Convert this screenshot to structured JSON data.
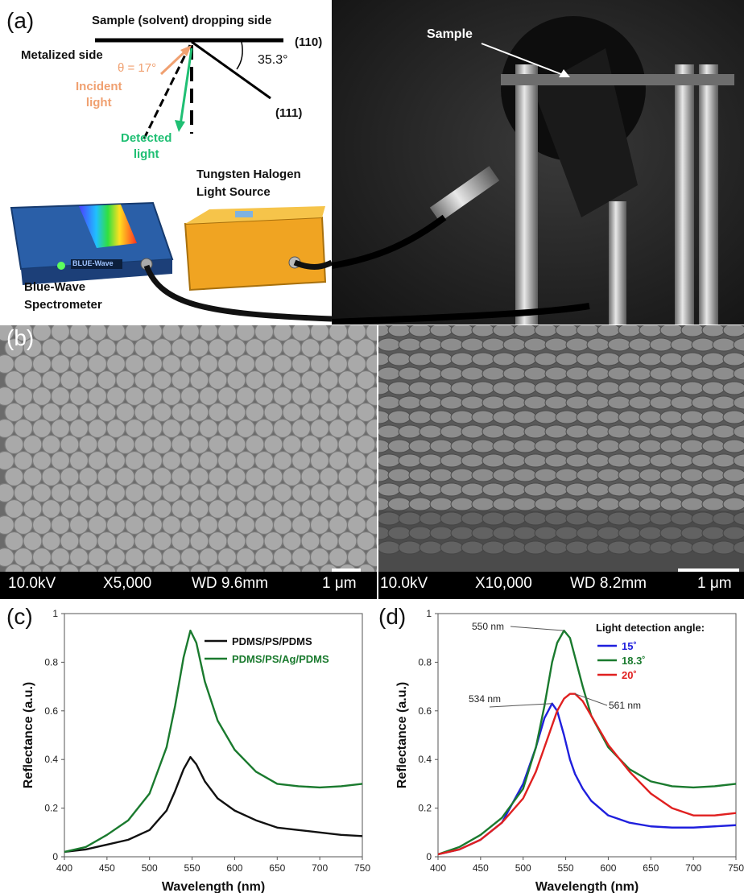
{
  "panel_a": {
    "label": "(a)",
    "top_label": "Sample (solvent) dropping side",
    "metalized_side": "Metalized side",
    "plane_110": "(110)",
    "plane_111": "(111)",
    "angle_35": "35.3°",
    "theta": "θ = 17°",
    "incident_line1": "Incident",
    "incident_line2": "light",
    "detected_line1": "Detected",
    "detected_line2": "light",
    "tungsten_line1": "Tungsten Halogen",
    "tungsten_line2": "Light Source",
    "bluewave_line1": "Blue-Wave",
    "bluewave_line2": "Spectrometer",
    "spectrometer_badge": "BLUE-Wave",
    "sample_label": "Sample",
    "colors": {
      "incident": "#f0a070",
      "detected": "#1fbf73"
    }
  },
  "panel_b": {
    "label": "(b)",
    "left": {
      "kv": "10.0kV",
      "mag": "X5,000",
      "wd": "WD 9.6mm",
      "scale": "1 μm"
    },
    "right": {
      "kv": "10.0kV",
      "mag": "X10,000",
      "wd": "WD 8.2mm",
      "scale": "1 μm"
    }
  },
  "panel_c": {
    "label": "(c)"
  },
  "panel_d": {
    "label": "(d)"
  },
  "chart_data": [
    {
      "type": "line",
      "xlabel": "Wavelength (nm)",
      "ylabel": "Reflectance (a.u.)",
      "xlim": [
        400,
        750
      ],
      "ylim": [
        0,
        1
      ],
      "xticks": [
        400,
        450,
        500,
        550,
        600,
        650,
        700,
        750
      ],
      "yticks": [
        0,
        0.2,
        0.4,
        0.6,
        0.8,
        1
      ],
      "legend": "top-right",
      "x": [
        400,
        425,
        450,
        475,
        500,
        520,
        530,
        540,
        548,
        555,
        565,
        580,
        600,
        625,
        650,
        675,
        700,
        725,
        750
      ],
      "series": [
        {
          "name": "PDMS/PS/PDMS",
          "color": "#111111",
          "values": [
            0.02,
            0.03,
            0.05,
            0.07,
            0.11,
            0.19,
            0.27,
            0.36,
            0.41,
            0.38,
            0.31,
            0.24,
            0.19,
            0.15,
            0.12,
            0.11,
            0.1,
            0.09,
            0.085
          ]
        },
        {
          "name": "PDMS/PS/Ag/PDMS",
          "color": "#1a7a2e",
          "values": [
            0.02,
            0.04,
            0.09,
            0.15,
            0.26,
            0.45,
            0.62,
            0.82,
            0.93,
            0.88,
            0.72,
            0.56,
            0.44,
            0.35,
            0.3,
            0.29,
            0.285,
            0.29,
            0.3
          ]
        }
      ]
    },
    {
      "type": "line",
      "xlabel": "Wavelength (nm)",
      "ylabel": "Reflectance (a.u.)",
      "xlim": [
        400,
        750
      ],
      "ylim": [
        0,
        1
      ],
      "xticks": [
        400,
        450,
        500,
        550,
        600,
        650,
        700,
        750
      ],
      "yticks": [
        0,
        0.2,
        0.4,
        0.6,
        0.8,
        1
      ],
      "legend_title": "Light detection angle:",
      "legend": "top-right",
      "annotations": [
        "550 nm",
        "534 nm",
        "561 nm"
      ],
      "x": [
        400,
        425,
        450,
        475,
        500,
        515,
        525,
        534,
        540,
        548,
        555,
        561,
        570,
        580,
        600,
        625,
        650,
        675,
        700,
        725,
        750
      ],
      "series": [
        {
          "name": "15˚",
          "color": "#1f1fdd",
          "values": [
            0.01,
            0.03,
            0.07,
            0.14,
            0.3,
            0.45,
            0.57,
            0.63,
            0.6,
            0.5,
            0.4,
            0.34,
            0.28,
            0.23,
            0.17,
            0.14,
            0.125,
            0.12,
            0.12,
            0.125,
            0.13
          ]
        },
        {
          "name": "18.3˚",
          "color": "#1a7a2e",
          "values": [
            0.01,
            0.04,
            0.09,
            0.16,
            0.28,
            0.45,
            0.62,
            0.8,
            0.88,
            0.93,
            0.9,
            0.82,
            0.7,
            0.58,
            0.45,
            0.36,
            0.31,
            0.29,
            0.285,
            0.29,
            0.3
          ]
        },
        {
          "name": "20˚",
          "color": "#e02020",
          "values": [
            0.01,
            0.03,
            0.07,
            0.14,
            0.24,
            0.35,
            0.45,
            0.54,
            0.6,
            0.65,
            0.67,
            0.67,
            0.64,
            0.58,
            0.46,
            0.35,
            0.26,
            0.2,
            0.17,
            0.17,
            0.18
          ]
        }
      ]
    }
  ]
}
